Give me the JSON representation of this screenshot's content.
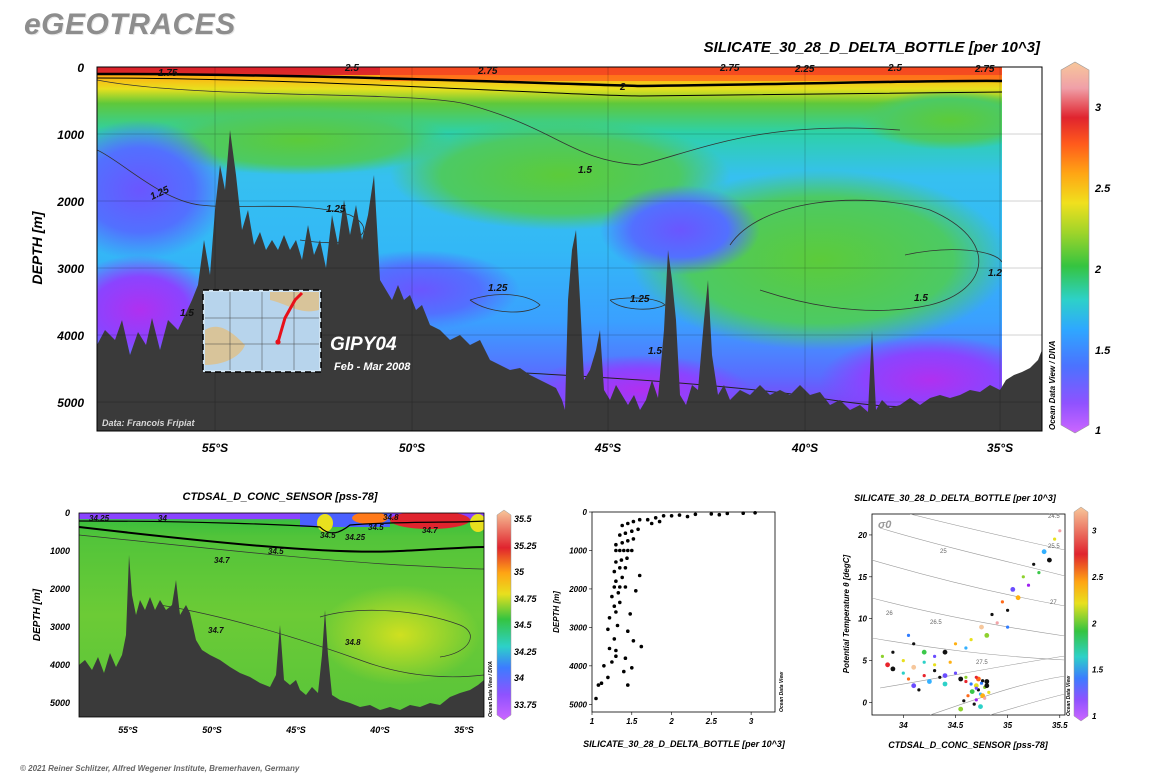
{
  "brand": "eGEOTRACES",
  "footer": "© 2021 Reiner Schlitzer, Alfred Wegener Institute, Bremerhaven, Germany",
  "colors": {
    "topo": "#3a3a3a",
    "contour": "#333333",
    "scale": [
      "#a020f0",
      "#6a4dff",
      "#2f7cff",
      "#33b0ff",
      "#2dd1c8",
      "#3cc84a",
      "#8ed12e",
      "#e8e01e",
      "#ffb012",
      "#ff6a1a",
      "#e8242c",
      "#f2a4a8",
      "#f6c79c"
    ]
  },
  "main": {
    "title": "SILICATE_30_28_D_DELTA_BOTTLE [per 10^3]",
    "ylabel": "DEPTH [m]",
    "yticks": [
      "0",
      "1000",
      "2000",
      "3000",
      "4000",
      "5000"
    ],
    "xticks": [
      "55°S",
      "50°S",
      "45°S",
      "40°S",
      "35°S"
    ],
    "contour_labels": [
      "1.75",
      "2.5",
      "2.75",
      "2.75",
      "2.25",
      "2.5",
      "2.75",
      "2",
      "1.5",
      "1.25",
      "1.25",
      "1.25",
      "1.25",
      "1.5",
      "1.2",
      "1.5",
      "1.5"
    ],
    "credit": "Data: Francois Fripiat",
    "cruise": "GIPY04",
    "cruise_date": "Feb - Mar 2008",
    "colorbar_ticks": [
      "3",
      "2.5",
      "2",
      "1.5",
      "1"
    ],
    "colorbar_side": "Ocean Data View / DIVA"
  },
  "salinity": {
    "title": "CTDSAL_D_CONC_SENSOR [pss-78]",
    "ylabel": "DEPTH [m]",
    "yticks": [
      "0",
      "1000",
      "2000",
      "3000",
      "4000",
      "5000"
    ],
    "xticks": [
      "55°S",
      "50°S",
      "45°S",
      "40°S",
      "35°S"
    ],
    "contour_labels": [
      "34.25",
      "34",
      "34.8",
      "34.5",
      "34.5",
      "34.25",
      "34.7",
      "34.5",
      "34.7",
      "34.7",
      "34.8"
    ],
    "colorbar_ticks": [
      "35.5",
      "35.25",
      "35",
      "34.75",
      "34.5",
      "34.25",
      "34",
      "33.75"
    ],
    "colorbar_side": "Ocean Data View / DIVA"
  },
  "chart_data": [
    {
      "type": "heatmap",
      "title": "SILICATE_30_28_D_DELTA_BOTTLE [per 10^3]",
      "ylabel": "DEPTH [m]",
      "x_ticks": [
        "55°S",
        "50°S",
        "45°S",
        "40°S",
        "35°S"
      ],
      "ylim": [
        0,
        5400
      ],
      "colorbar_range": [
        1,
        3.2
      ]
    },
    {
      "type": "heatmap",
      "title": "CTDSAL_D_CONC_SENSOR [pss-78]",
      "ylabel": "DEPTH [m]",
      "x_ticks": [
        "55°S",
        "50°S",
        "45°S",
        "40°S",
        "35°S"
      ],
      "ylim": [
        0,
        5300
      ],
      "colorbar_range": [
        33.7,
        35.55
      ]
    },
    {
      "type": "scatter",
      "xlabel": "SILICATE_30_28_D_DELTA_BOTTLE [per 10^3]",
      "ylabel": "DEPTH [m]",
      "xlim": [
        1,
        3.3
      ],
      "ylim": [
        5200,
        0
      ],
      "x_ticks": [
        "1",
        "1.5",
        "2",
        "2.5",
        "3"
      ],
      "y_ticks": [
        "0",
        "1000",
        "2000",
        "3000",
        "4000",
        "5000"
      ],
      "side_label": "Ocean Data View",
      "points": [
        [
          1.05,
          4850
        ],
        [
          1.08,
          4500
        ],
        [
          1.12,
          4450
        ],
        [
          1.15,
          4000
        ],
        [
          1.2,
          4300
        ],
        [
          1.25,
          3900
        ],
        [
          1.3,
          3750
        ],
        [
          1.22,
          3550
        ],
        [
          1.3,
          3600
        ],
        [
          1.28,
          3300
        ],
        [
          1.2,
          3050
        ],
        [
          1.32,
          2950
        ],
        [
          1.22,
          2750
        ],
        [
          1.3,
          2600
        ],
        [
          1.28,
          2450
        ],
        [
          1.35,
          2350
        ],
        [
          1.25,
          2200
        ],
        [
          1.33,
          2100
        ],
        [
          1.28,
          1950
        ],
        [
          1.35,
          1950
        ],
        [
          1.42,
          1950
        ],
        [
          1.3,
          1800
        ],
        [
          1.38,
          1700
        ],
        [
          1.28,
          1550
        ],
        [
          1.35,
          1450
        ],
        [
          1.42,
          1450
        ],
        [
          1.3,
          1300
        ],
        [
          1.37,
          1250
        ],
        [
          1.44,
          1200
        ],
        [
          1.3,
          1000
        ],
        [
          1.35,
          1000
        ],
        [
          1.4,
          1000
        ],
        [
          1.45,
          1000
        ],
        [
          1.5,
          1000
        ],
        [
          1.3,
          850
        ],
        [
          1.38,
          800
        ],
        [
          1.45,
          750
        ],
        [
          1.52,
          700
        ],
        [
          1.35,
          600
        ],
        [
          1.42,
          550
        ],
        [
          1.5,
          500
        ],
        [
          1.58,
          450
        ],
        [
          1.38,
          350
        ],
        [
          1.45,
          300
        ],
        [
          1.52,
          250
        ],
        [
          1.6,
          200
        ],
        [
          1.7,
          200
        ],
        [
          1.8,
          150
        ],
        [
          1.9,
          100
        ],
        [
          2.0,
          100
        ],
        [
          2.1,
          80
        ],
        [
          2.3,
          60
        ],
        [
          2.5,
          50
        ],
        [
          2.7,
          40
        ],
        [
          2.9,
          30
        ],
        [
          3.05,
          20
        ],
        [
          1.48,
          2650
        ],
        [
          1.45,
          3100
        ],
        [
          1.52,
          3350
        ],
        [
          1.42,
          3800
        ],
        [
          1.55,
          2050
        ],
        [
          1.6,
          1650
        ],
        [
          1.62,
          3500
        ],
        [
          1.5,
          4050
        ],
        [
          1.4,
          4150
        ],
        [
          1.75,
          300
        ],
        [
          1.85,
          250
        ],
        [
          2.2,
          120
        ],
        [
          2.6,
          70
        ],
        [
          1.45,
          4500
        ]
      ]
    },
    {
      "type": "scatter",
      "title": "SILICATE_30_28_D_DELTA_BOTTLE [per 10^3]",
      "xlabel": "CTDSAL_D_CONC_SENSOR [pss-78]",
      "ylabel": "Potential Temperature θ [degC]",
      "xlim": [
        33.7,
        35.55
      ],
      "ylim": [
        -1.5,
        22.5
      ],
      "x_ticks": [
        "34",
        "34.5",
        "35",
        "35.5"
      ],
      "y_ticks": [
        "0",
        "5",
        "10",
        "15",
        "20"
      ],
      "isopycnal_symbol": "σ0",
      "isopycnals": [
        "24.5",
        "25",
        "25.5",
        "26",
        "26.5",
        "27",
        "27.5"
      ],
      "colorbar_ticks": [
        "3",
        "2.5",
        "2",
        "1.5",
        "1"
      ],
      "colorbar_side": "Ocean Data View",
      "points": [
        [
          33.9,
          4.0
        ],
        [
          34.0,
          3.5
        ],
        [
          34.05,
          2.8
        ],
        [
          34.1,
          2.0
        ],
        [
          34.15,
          1.5
        ],
        [
          34.2,
          3.2
        ],
        [
          34.25,
          2.5
        ],
        [
          34.3,
          4.5
        ],
        [
          34.35,
          3.0
        ],
        [
          34.4,
          2.2
        ],
        [
          34.45,
          4.8
        ],
        [
          34.5,
          3.5
        ],
        [
          34.55,
          2.8
        ],
        [
          34.6,
          2.5
        ],
        [
          34.65,
          2.2
        ],
        [
          34.7,
          2.0
        ],
        [
          34.72,
          1.5
        ],
        [
          34.74,
          1.0
        ],
        [
          34.76,
          0.8
        ],
        [
          34.7,
          0.3
        ],
        [
          34.68,
          -0.2
        ],
        [
          34.72,
          2.8
        ],
        [
          34.75,
          2.3
        ],
        [
          34.78,
          1.8
        ],
        [
          34.8,
          2.5
        ],
        [
          34.6,
          6.5
        ],
        [
          34.65,
          7.5
        ],
        [
          34.75,
          9.0
        ],
        [
          34.85,
          10.5
        ],
        [
          34.95,
          12.0
        ],
        [
          35.05,
          13.5
        ],
        [
          35.15,
          15.0
        ],
        [
          35.25,
          16.5
        ],
        [
          35.35,
          18.0
        ],
        [
          35.45,
          19.5
        ],
        [
          35.5,
          20.5
        ],
        [
          34.4,
          6.0
        ],
        [
          34.5,
          7.0
        ],
        [
          34.3,
          5.5
        ],
        [
          34.2,
          6.0
        ],
        [
          34.1,
          7.0
        ],
        [
          34.05,
          8.0
        ],
        [
          34.8,
          8.0
        ],
        [
          34.9,
          9.5
        ],
        [
          35.0,
          11.0
        ],
        [
          35.1,
          12.5
        ],
        [
          35.2,
          14.0
        ],
        [
          35.3,
          15.5
        ],
        [
          35.4,
          17.0
        ],
        [
          35.0,
          9.0
        ],
        [
          33.8,
          5.5
        ],
        [
          33.85,
          4.5
        ],
        [
          33.9,
          6.0
        ],
        [
          34.0,
          5.0
        ],
        [
          34.1,
          4.2
        ],
        [
          34.2,
          4.8
        ],
        [
          34.3,
          3.8
        ],
        [
          34.4,
          3.2
        ],
        [
          34.6,
          3.0
        ],
        [
          34.7,
          3.0
        ],
        [
          34.8,
          2.0
        ],
        [
          34.82,
          1.2
        ],
        [
          34.78,
          0.5
        ],
        [
          34.74,
          -0.5
        ],
        [
          34.76,
          2.6
        ],
        [
          34.7,
          1.7
        ],
        [
          34.66,
          1.3
        ],
        [
          34.62,
          0.8
        ],
        [
          34.58,
          0.2
        ],
        [
          34.55,
          -0.8
        ]
      ]
    }
  ]
}
